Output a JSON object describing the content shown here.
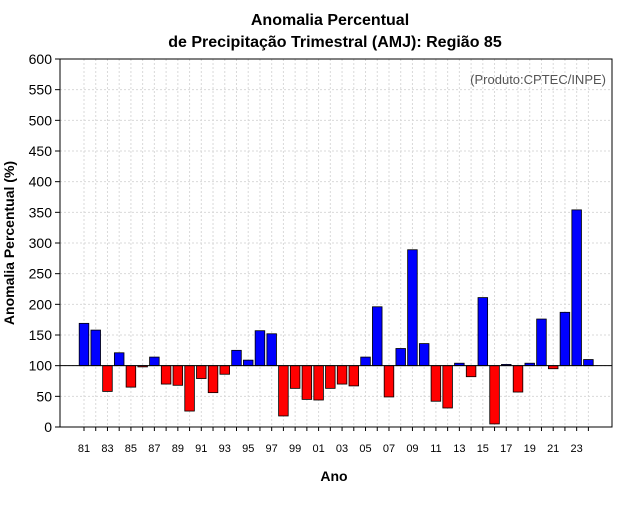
{
  "chart_data": {
    "type": "bar",
    "title_line1": "Anomalia Percentual",
    "title_line2": "de Precipitação Trimestral (AMJ): Região 85",
    "xlabel": "Ano",
    "ylabel": "Anomalia Percentual (%)",
    "credit": "(Produto:CPTEC/INPE)",
    "baseline": 100,
    "ylim": [
      0,
      600
    ],
    "yticks": [
      0,
      50,
      100,
      150,
      200,
      250,
      300,
      350,
      400,
      450,
      500,
      550,
      600
    ],
    "xtick_labels": [
      "81",
      "83",
      "85",
      "87",
      "89",
      "91",
      "93",
      "95",
      "97",
      "99",
      "01",
      "03",
      "05",
      "07",
      "09",
      "11",
      "13",
      "15",
      "17",
      "19",
      "21",
      "23"
    ],
    "grid": true,
    "colors": {
      "above": "#0000ff",
      "below": "#ff0000",
      "edge": "#000000",
      "grid": "#d9d9d9"
    },
    "years": [
      1981,
      1982,
      1983,
      1984,
      1985,
      1986,
      1987,
      1988,
      1989,
      1990,
      1991,
      1992,
      1993,
      1994,
      1995,
      1996,
      1997,
      1998,
      1999,
      2000,
      2001,
      2002,
      2003,
      2004,
      2005,
      2006,
      2007,
      2008,
      2009,
      2010,
      2011,
      2012,
      2013,
      2014,
      2015,
      2016,
      2017,
      2018,
      2019,
      2020,
      2021,
      2022,
      2023,
      2024
    ],
    "values": [
      169,
      158,
      58,
      121,
      65,
      98,
      114,
      70,
      68,
      26,
      79,
      56,
      86,
      125,
      109,
      157,
      152,
      18,
      63,
      45,
      44,
      63,
      70,
      67,
      114,
      196,
      49,
      128,
      289,
      136,
      42,
      31,
      104,
      82,
      211,
      5,
      102,
      57,
      104,
      176,
      95,
      187,
      354,
      110
    ]
  }
}
